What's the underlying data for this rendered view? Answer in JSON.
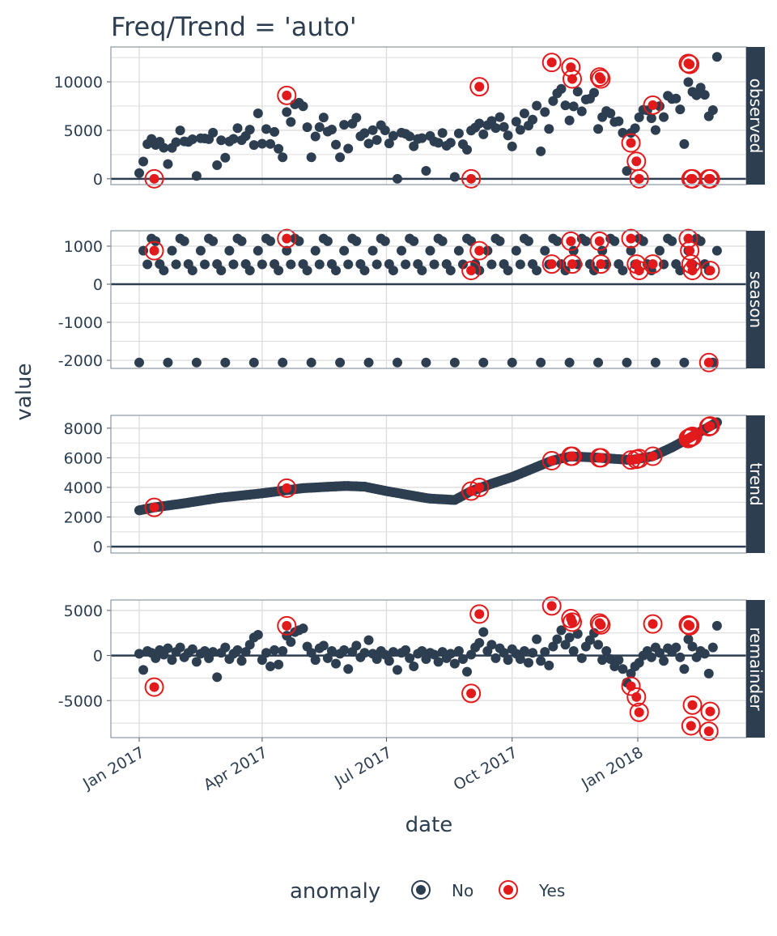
{
  "chart_data": {
    "type": "scatter",
    "title": "Freq/Trend = 'auto'",
    "xlabel": "date",
    "ylabel": "value",
    "start_date": "2017-01-01",
    "step_days": 3,
    "x_ticks": [
      {
        "label": "Jan 2017",
        "day": 0
      },
      {
        "label": "Apr 2017",
        "day": 90
      },
      {
        "label": "Jul 2017",
        "day": 181
      },
      {
        "label": "Oct 2017",
        "day": 273
      },
      {
        "label": "Jan 2018",
        "day": 365
      }
    ],
    "x_range_days": [
      -20,
      445
    ],
    "season_pattern": [
      -2060,
      530,
      1200,
      880,
      360,
      1130,
      520
    ],
    "trend_knots": [
      [
        0,
        2450
      ],
      [
        11,
        2650
      ],
      [
        31,
        2900
      ],
      [
        59,
        3300
      ],
      [
        90,
        3600
      ],
      [
        120,
        3950
      ],
      [
        151,
        4100
      ],
      [
        165,
        4050
      ],
      [
        181,
        3750
      ],
      [
        212,
        3250
      ],
      [
        231,
        3150
      ],
      [
        243,
        3750
      ],
      [
        258,
        4250
      ],
      [
        273,
        4700
      ],
      [
        302,
        5800
      ],
      [
        316,
        6100
      ],
      [
        337,
        6000
      ],
      [
        360,
        5850
      ],
      [
        376,
        6100
      ],
      [
        390,
        6700
      ],
      [
        402,
        7300
      ],
      [
        423,
        8400
      ]
    ],
    "remainder": [
      200,
      -1600,
      500,
      300,
      -300,
      600,
      100,
      800,
      -500,
      400,
      900,
      -200,
      300,
      700,
      -700,
      200,
      500,
      -300,
      400,
      -2400,
      300,
      900,
      -400,
      200,
      600,
      -600,
      400,
      1200,
      2000,
      2300,
      -500,
      300,
      -1200,
      600,
      -1000,
      500,
      2200,
      1500,
      2600,
      2800,
      3000,
      1000,
      300,
      -500,
      800,
      1100,
      -300,
      500,
      -900,
      200,
      600,
      -1500,
      400,
      1100,
      -200,
      300,
      1700,
      200,
      -400,
      500,
      100,
      -600,
      400,
      -1600,
      300,
      600,
      -300,
      -1200,
      200,
      500,
      -400,
      300,
      100,
      -700,
      400,
      -300,
      200,
      -900,
      500,
      -400,
      -1800,
      100,
      900,
      1400,
      2600,
      500,
      1200,
      -300,
      800,
      300,
      -500,
      700,
      200,
      -400,
      500,
      -800,
      300,
      1800,
      -600,
      400,
      -1100,
      1000,
      1800,
      2800,
      1200,
      2000,
      500,
      2400,
      -300,
      1000,
      1700,
      2500,
      1200,
      -500,
      500,
      -400,
      -1200,
      -500,
      -1500,
      -3000,
      -2000,
      -1200,
      -800,
      0,
      500,
      -200,
      900,
      300,
      -600,
      800,
      400,
      900,
      -200,
      -1500,
      1800,
      1000,
      -200,
      500,
      200,
      -2000,
      900,
      3300
    ],
    "anomalies": [
      {
        "day": 11,
        "observed": 0,
        "season": 880,
        "trend": 2650,
        "remainder": -3500
      },
      {
        "day": 108,
        "observed": 8600,
        "season": 1200,
        "trend": 3950,
        "remainder": 3300
      },
      {
        "day": 243,
        "observed": 0,
        "season": 360,
        "trend": 3750,
        "remainder": -4200
      },
      {
        "day": 249,
        "observed": 9500,
        "season": 880,
        "trend": 4000,
        "remainder": 4600
      },
      {
        "day": 302,
        "observed": 12000,
        "season": 530,
        "trend": 5800,
        "remainder": 5500
      },
      {
        "day": 316,
        "observed": 11500,
        "season": 1130,
        "trend": 6100,
        "remainder": 4100
      },
      {
        "day": 317,
        "observed": 10300,
        "season": 530,
        "trend": 6100,
        "remainder": 3700
      },
      {
        "day": 337,
        "observed": 10500,
        "season": 1130,
        "trend": 6000,
        "remainder": 3600
      },
      {
        "day": 338,
        "observed": 10300,
        "season": 530,
        "trend": 6000,
        "remainder": 3400
      },
      {
        "day": 360,
        "observed": 3700,
        "season": 1200,
        "trend": 5850,
        "remainder": -3400
      },
      {
        "day": 364,
        "observed": 1800,
        "season": 530,
        "trend": 5900,
        "remainder": -4600
      },
      {
        "day": 366,
        "observed": 0,
        "season": 360,
        "trend": 5950,
        "remainder": -6300
      },
      {
        "day": 376,
        "observed": 7600,
        "season": 530,
        "trend": 6100,
        "remainder": 3500
      },
      {
        "day": 402,
        "observed": 11900,
        "season": 1200,
        "trend": 7300,
        "remainder": 3400
      },
      {
        "day": 403,
        "observed": 11800,
        "season": 880,
        "trend": 7350,
        "remainder": 3300
      },
      {
        "day": 404,
        "observed": 0,
        "season": 530,
        "trend": 7400,
        "remainder": -7800
      },
      {
        "day": 405,
        "observed": 0,
        "season": 360,
        "trend": 7450,
        "remainder": -5500
      },
      {
        "day": 417,
        "observed": 0,
        "season": -2060,
        "trend": 8100,
        "remainder": -8400
      },
      {
        "day": 418,
        "observed": 0,
        "season": 360,
        "trend": 8150,
        "remainder": -6200
      }
    ],
    "panels": [
      {
        "key": "observed",
        "label": "observed",
        "ylim": [
          -600,
          13600
        ],
        "ticks": [
          0,
          5000,
          10000
        ],
        "tick_labels": [
          "0",
          "5000",
          "10000"
        ],
        "minor": [
          2500,
          7500,
          12500
        ]
      },
      {
        "key": "season",
        "label": "season",
        "ylim": [
          -2213,
          1404
        ],
        "ticks": [
          -2000,
          -1000,
          0,
          1000
        ],
        "tick_labels": [
          "-2000",
          "-1000",
          "0",
          "1000"
        ],
        "minor": [
          -1500,
          -500,
          500
        ]
      },
      {
        "key": "trend",
        "label": "trend",
        "ylim": [
          -432,
          8865
        ],
        "ticks": [
          0,
          2000,
          4000,
          6000,
          8000
        ],
        "tick_labels": [
          "0",
          "2000",
          "4000",
          "6000",
          "8000"
        ],
        "minor": [
          1000,
          3000,
          5000,
          7000
        ]
      },
      {
        "key": "remainder",
        "label": "remainder",
        "ylim": [
          -9107,
          6160
        ],
        "ticks": [
          -5000,
          0,
          5000
        ],
        "tick_labels": [
          "-5000",
          "0",
          "5000"
        ],
        "minor": [
          -7500,
          -2500,
          2500
        ]
      }
    ],
    "legend": {
      "title": "anomaly",
      "entries": [
        "No",
        "Yes"
      ],
      "placement": "bottom"
    },
    "colors": {
      "normal": "#2c3e50",
      "anomaly": "#e31a1c",
      "grid": "#dcdcdc",
      "strip": "#2c3e50"
    },
    "grid": true
  }
}
